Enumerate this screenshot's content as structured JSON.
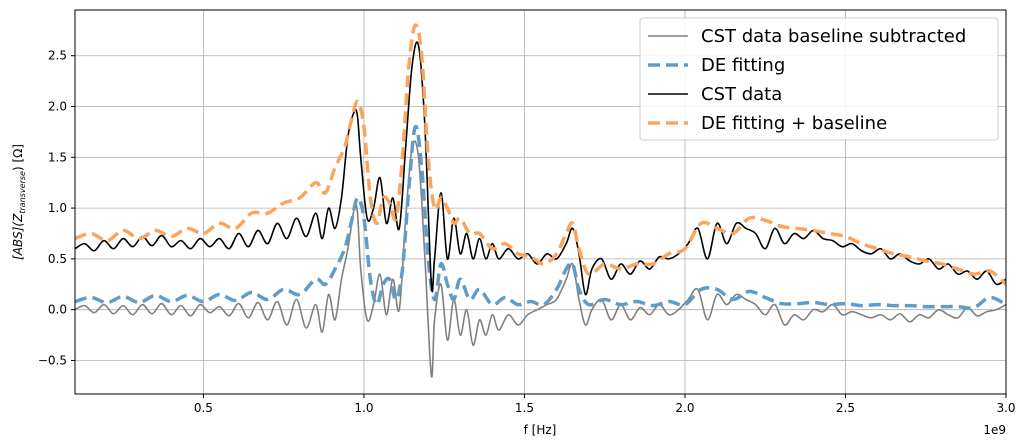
{
  "chart_data": {
    "type": "line",
    "xlabel": "f [Hz]",
    "ylabel_main": "[ABS](Z",
    "ylabel_sub": "transverse",
    "ylabel_tail": ") [Ω]",
    "x_offset_text": "1e9",
    "xlim": [
      0.1,
      3.0
    ],
    "ylim": [
      -0.83,
      2.95
    ],
    "x_scale_note": "x values in units of 1e9 Hz",
    "xticks": [
      0.5,
      1.0,
      1.5,
      2.0,
      2.5,
      3.0
    ],
    "xtick_labels": [
      "0.5",
      "1.0",
      "1.5",
      "2.0",
      "2.5",
      "3.0"
    ],
    "yticks": [
      -0.5,
      0.0,
      0.5,
      1.0,
      1.5,
      2.0,
      2.5
    ],
    "ytick_labels": [
      "−0.5",
      "0.0",
      "0.5",
      "1.0",
      "1.5",
      "2.0",
      "2.5"
    ],
    "grid": true,
    "legend_position": "top-right",
    "series": [
      {
        "name": "CST data baseline subtracted",
        "color": "#808080",
        "style": "solid",
        "x": [
          0.1,
          0.13,
          0.16,
          0.19,
          0.22,
          0.25,
          0.28,
          0.31,
          0.34,
          0.37,
          0.4,
          0.43,
          0.46,
          0.49,
          0.52,
          0.55,
          0.58,
          0.61,
          0.64,
          0.67,
          0.7,
          0.73,
          0.76,
          0.79,
          0.82,
          0.85,
          0.87,
          0.89,
          0.91,
          0.93,
          0.95,
          0.97,
          0.98,
          0.99,
          1.01,
          1.03,
          1.05,
          1.07,
          1.09,
          1.11,
          1.13,
          1.15,
          1.17,
          1.19,
          1.21,
          1.22,
          1.24,
          1.26,
          1.28,
          1.3,
          1.32,
          1.34,
          1.36,
          1.38,
          1.4,
          1.42,
          1.45,
          1.48,
          1.51,
          1.54,
          1.57,
          1.6,
          1.63,
          1.65,
          1.67,
          1.69,
          1.71,
          1.74,
          1.77,
          1.8,
          1.83,
          1.86,
          1.89,
          1.92,
          1.95,
          1.98,
          2.01,
          2.04,
          2.07,
          2.1,
          2.13,
          2.16,
          2.19,
          2.22,
          2.25,
          2.28,
          2.31,
          2.34,
          2.37,
          2.4,
          2.43,
          2.46,
          2.49,
          2.52,
          2.55,
          2.58,
          2.61,
          2.64,
          2.67,
          2.7,
          2.73,
          2.76,
          2.79,
          2.82,
          2.85,
          2.88,
          2.91,
          2.94,
          2.97,
          3.0
        ],
        "y": [
          0.0,
          0.04,
          -0.03,
          0.05,
          -0.04,
          0.04,
          -0.05,
          0.05,
          -0.04,
          0.06,
          -0.05,
          0.04,
          -0.06,
          0.05,
          -0.03,
          0.03,
          -0.06,
          0.06,
          -0.08,
          0.07,
          -0.1,
          0.08,
          -0.15,
          0.1,
          -0.18,
          0.05,
          -0.22,
          0.15,
          -0.1,
          0.3,
          0.6,
          1.0,
          0.95,
          0.4,
          -0.1,
          0.05,
          0.35,
          -0.05,
          0.3,
          0.0,
          0.9,
          1.6,
          1.5,
          0.5,
          -0.65,
          -0.1,
          0.25,
          -0.3,
          0.1,
          -0.25,
          0.0,
          -0.35,
          -0.1,
          -0.25,
          -0.05,
          -0.2,
          -0.05,
          -0.15,
          -0.05,
          0.0,
          0.05,
          0.1,
          0.3,
          0.45,
          0.1,
          -0.15,
          0.0,
          0.1,
          -0.1,
          0.05,
          -0.1,
          0.02,
          -0.05,
          0.05,
          -0.05,
          0.0,
          0.1,
          0.2,
          -0.1,
          0.15,
          0.05,
          0.15,
          0.1,
          0.05,
          -0.05,
          0.05,
          -0.15,
          -0.05,
          -0.1,
          0.0,
          -0.02,
          0.05,
          -0.05,
          -0.02,
          -0.05,
          -0.08,
          -0.05,
          -0.1,
          -0.04,
          -0.12,
          -0.05,
          -0.08,
          0.0,
          -0.05,
          -0.08,
          0.02,
          -0.06,
          -0.02,
          0.0,
          0.05
        ]
      },
      {
        "name": "DE fitting",
        "color": "#5f9dc6",
        "style": "dashed",
        "x": [
          0.1,
          0.15,
          0.2,
          0.25,
          0.3,
          0.35,
          0.4,
          0.45,
          0.5,
          0.55,
          0.6,
          0.65,
          0.7,
          0.75,
          0.8,
          0.85,
          0.88,
          0.91,
          0.94,
          0.96,
          0.98,
          1.0,
          1.02,
          1.04,
          1.06,
          1.08,
          1.1,
          1.12,
          1.14,
          1.16,
          1.18,
          1.2,
          1.22,
          1.24,
          1.26,
          1.28,
          1.3,
          1.33,
          1.36,
          1.4,
          1.44,
          1.48,
          1.52,
          1.56,
          1.6,
          1.63,
          1.65,
          1.67,
          1.7,
          1.75,
          1.8,
          1.85,
          1.9,
          1.95,
          2.0,
          2.05,
          2.1,
          2.15,
          2.2,
          2.25,
          2.3,
          2.35,
          2.4,
          2.45,
          2.5,
          2.55,
          2.6,
          2.65,
          2.7,
          2.75,
          2.8,
          2.85,
          2.9,
          2.95,
          3.0
        ],
        "y": [
          0.08,
          0.12,
          0.07,
          0.13,
          0.07,
          0.14,
          0.08,
          0.14,
          0.08,
          0.15,
          0.09,
          0.17,
          0.1,
          0.2,
          0.15,
          0.3,
          0.25,
          0.4,
          0.6,
          0.85,
          1.1,
          0.9,
          0.3,
          0.05,
          0.25,
          0.3,
          0.1,
          0.4,
          1.2,
          1.8,
          1.4,
          0.5,
          0.1,
          0.45,
          0.25,
          0.1,
          0.3,
          0.1,
          0.2,
          0.05,
          0.12,
          0.05,
          0.08,
          0.05,
          0.2,
          0.4,
          0.45,
          0.2,
          0.05,
          0.1,
          0.05,
          0.08,
          0.04,
          0.08,
          0.05,
          0.2,
          0.2,
          0.1,
          0.18,
          0.12,
          0.06,
          0.06,
          0.07,
          0.05,
          0.06,
          0.04,
          0.05,
          0.04,
          0.04,
          0.03,
          0.03,
          0.03,
          0.02,
          0.12,
          0.05
        ]
      },
      {
        "name": "CST data",
        "color": "#000000",
        "style": "solid",
        "x": [
          0.1,
          0.13,
          0.16,
          0.19,
          0.22,
          0.25,
          0.28,
          0.31,
          0.34,
          0.37,
          0.4,
          0.43,
          0.46,
          0.49,
          0.52,
          0.55,
          0.58,
          0.61,
          0.64,
          0.67,
          0.7,
          0.73,
          0.76,
          0.79,
          0.82,
          0.85,
          0.87,
          0.89,
          0.91,
          0.93,
          0.95,
          0.97,
          0.98,
          0.99,
          1.01,
          1.03,
          1.05,
          1.07,
          1.09,
          1.11,
          1.13,
          1.15,
          1.17,
          1.19,
          1.21,
          1.22,
          1.24,
          1.26,
          1.28,
          1.3,
          1.32,
          1.34,
          1.36,
          1.38,
          1.4,
          1.42,
          1.45,
          1.48,
          1.51,
          1.54,
          1.57,
          1.6,
          1.63,
          1.65,
          1.67,
          1.69,
          1.71,
          1.74,
          1.77,
          1.8,
          1.83,
          1.86,
          1.89,
          1.92,
          1.95,
          1.98,
          2.01,
          2.04,
          2.07,
          2.1,
          2.13,
          2.16,
          2.19,
          2.22,
          2.25,
          2.28,
          2.31,
          2.34,
          2.37,
          2.4,
          2.43,
          2.46,
          2.49,
          2.52,
          2.55,
          2.58,
          2.61,
          2.64,
          2.67,
          2.7,
          2.73,
          2.76,
          2.79,
          2.82,
          2.85,
          2.88,
          2.91,
          2.94,
          2.97,
          3.0
        ],
        "y": [
          0.6,
          0.65,
          0.58,
          0.68,
          0.6,
          0.7,
          0.62,
          0.72,
          0.63,
          0.73,
          0.62,
          0.68,
          0.6,
          0.7,
          0.62,
          0.7,
          0.6,
          0.75,
          0.62,
          0.78,
          0.65,
          0.85,
          0.7,
          0.9,
          0.72,
          0.95,
          0.7,
          1.0,
          0.8,
          1.1,
          1.7,
          1.95,
          1.9,
          1.5,
          0.9,
          1.0,
          1.3,
          0.85,
          1.1,
          0.8,
          1.6,
          2.4,
          2.6,
          1.8,
          0.25,
          0.5,
          1.15,
          0.5,
          0.9,
          0.55,
          0.75,
          0.5,
          0.7,
          0.5,
          0.65,
          0.5,
          0.6,
          0.5,
          0.55,
          0.45,
          0.55,
          0.5,
          0.65,
          0.8,
          0.55,
          0.15,
          0.4,
          0.5,
          0.3,
          0.45,
          0.35,
          0.48,
          0.4,
          0.52,
          0.5,
          0.55,
          0.65,
          0.8,
          0.5,
          0.85,
          0.65,
          0.85,
          0.8,
          0.75,
          0.6,
          0.8,
          0.65,
          0.75,
          0.7,
          0.78,
          0.7,
          0.68,
          0.62,
          0.65,
          0.58,
          0.55,
          0.6,
          0.5,
          0.55,
          0.48,
          0.45,
          0.5,
          0.4,
          0.45,
          0.35,
          0.38,
          0.3,
          0.38,
          0.25,
          0.3
        ]
      },
      {
        "name": "DE fitting + baseline",
        "color": "#fba55c",
        "style": "dashed",
        "x": [
          0.1,
          0.15,
          0.2,
          0.25,
          0.3,
          0.35,
          0.4,
          0.45,
          0.5,
          0.55,
          0.6,
          0.65,
          0.7,
          0.75,
          0.8,
          0.85,
          0.88,
          0.91,
          0.94,
          0.96,
          0.98,
          1.0,
          1.02,
          1.04,
          1.06,
          1.08,
          1.1,
          1.12,
          1.14,
          1.16,
          1.18,
          1.2,
          1.22,
          1.24,
          1.26,
          1.28,
          1.3,
          1.33,
          1.36,
          1.4,
          1.44,
          1.48,
          1.52,
          1.56,
          1.6,
          1.63,
          1.65,
          1.67,
          1.7,
          1.75,
          1.8,
          1.85,
          1.9,
          1.95,
          2.0,
          2.05,
          2.1,
          2.15,
          2.2,
          2.25,
          2.3,
          2.35,
          2.4,
          2.45,
          2.5,
          2.55,
          2.6,
          2.65,
          2.7,
          2.75,
          2.8,
          2.85,
          2.9,
          2.95,
          3.0
        ],
        "y": [
          0.7,
          0.75,
          0.68,
          0.78,
          0.7,
          0.78,
          0.72,
          0.8,
          0.75,
          0.85,
          0.8,
          0.95,
          0.95,
          1.05,
          1.1,
          1.25,
          1.15,
          1.4,
          1.6,
          1.85,
          2.05,
          1.8,
          1.1,
          0.85,
          1.1,
          1.05,
          0.9,
          1.5,
          2.4,
          2.8,
          2.5,
          1.5,
          1.0,
          1.1,
          1.0,
          0.85,
          0.9,
          0.75,
          0.75,
          0.6,
          0.65,
          0.55,
          0.52,
          0.45,
          0.55,
          0.75,
          0.85,
          0.6,
          0.35,
          0.45,
          0.4,
          0.45,
          0.45,
          0.55,
          0.6,
          0.85,
          0.8,
          0.75,
          0.9,
          0.88,
          0.82,
          0.8,
          0.78,
          0.75,
          0.72,
          0.65,
          0.6,
          0.55,
          0.52,
          0.48,
          0.45,
          0.4,
          0.35,
          0.38,
          0.25
        ]
      }
    ]
  }
}
